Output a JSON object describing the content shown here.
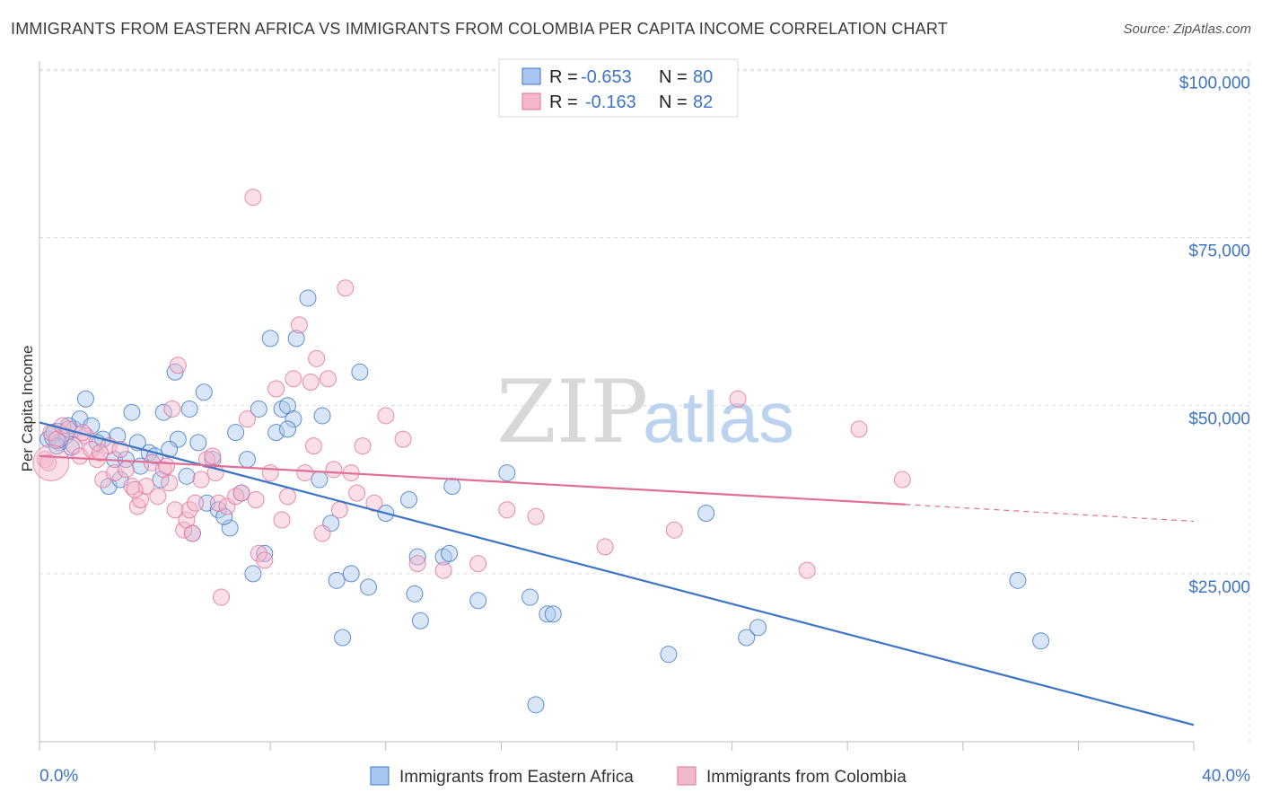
{
  "title": "IMMIGRANTS FROM EASTERN AFRICA VS IMMIGRANTS FROM COLOMBIA PER CAPITA INCOME CORRELATION CHART",
  "source": "Source: ZipAtlas.com",
  "watermark": {
    "zip": "ZIP",
    "atlas": "atlas"
  },
  "colors": {
    "blue": "#3d74c6",
    "blue_fill": "#a9c7ee",
    "pink": "#e07098",
    "pink_fill": "#f4b8cc",
    "grid": "#dcdcdc"
  },
  "legend": {
    "row1": {
      "r_label": "R =",
      "r_value": "-0.653",
      "n_label": "N =",
      "n_value": "80"
    },
    "row2": {
      "r_label": "R =",
      "r_value": "-0.163",
      "n_label": "N =",
      "n_value": "82"
    }
  },
  "chart_data": {
    "type": "scatter",
    "title": "IMMIGRANTS FROM EASTERN AFRICA VS IMMIGRANTS FROM COLOMBIA PER CAPITA INCOME CORRELATION CHART",
    "xlabel": "",
    "ylabel": "Per Capita Income",
    "xlim": [
      0,
      40
    ],
    "ylim": [
      0,
      105000
    ],
    "x_tick_labels": [
      "0.0%",
      "40.0%"
    ],
    "y_ticks": [
      25000,
      50000,
      75000,
      100000
    ],
    "y_tick_labels": [
      "$25,000",
      "$50,000",
      "$75,000",
      "$100,000"
    ],
    "grid": true,
    "legend_position": "bottom",
    "series": [
      {
        "name": "Immigrants from Eastern Africa",
        "color": "#3d74c6",
        "r": -0.653,
        "n": 80,
        "trend": {
          "x": [
            0,
            40
          ],
          "y": [
            47500,
            2500
          ]
        },
        "points": [
          [
            0.3,
            45000
          ],
          [
            0.5,
            46000
          ],
          [
            0.7,
            44500
          ],
          [
            0.9,
            45500
          ],
          [
            1.1,
            43800
          ],
          [
            1.2,
            46500
          ],
          [
            1.4,
            48000
          ],
          [
            1.6,
            51000
          ],
          [
            1.8,
            47000
          ],
          [
            2.2,
            45000
          ],
          [
            2.4,
            38000
          ],
          [
            2.6,
            42000
          ],
          [
            2.8,
            39000
          ],
          [
            3.2,
            49000
          ],
          [
            3.4,
            44500
          ],
          [
            3.5,
            41000
          ],
          [
            3.8,
            43000
          ],
          [
            4.0,
            42500
          ],
          [
            4.2,
            39000
          ],
          [
            4.3,
            49000
          ],
          [
            4.7,
            55000
          ],
          [
            4.8,
            45000
          ],
          [
            5.2,
            49500
          ],
          [
            5.3,
            31000
          ],
          [
            5.5,
            44500
          ],
          [
            5.7,
            52000
          ],
          [
            5.8,
            35500
          ],
          [
            6.0,
            42000
          ],
          [
            6.2,
            34500
          ],
          [
            6.6,
            31800
          ],
          [
            6.8,
            46000
          ],
          [
            7.0,
            37000
          ],
          [
            7.2,
            42000
          ],
          [
            7.4,
            25000
          ],
          [
            7.6,
            49500
          ],
          [
            7.8,
            28000
          ],
          [
            8.0,
            60000
          ],
          [
            8.2,
            46000
          ],
          [
            8.4,
            49500
          ],
          [
            8.6,
            50000
          ],
          [
            8.8,
            48000
          ],
          [
            8.9,
            60000
          ],
          [
            9.3,
            66000
          ],
          [
            9.7,
            39000
          ],
          [
            9.8,
            48500
          ],
          [
            10.1,
            32500
          ],
          [
            10.3,
            24000
          ],
          [
            10.5,
            15500
          ],
          [
            10.8,
            25000
          ],
          [
            11.1,
            55000
          ],
          [
            11.4,
            23000
          ],
          [
            12.8,
            36000
          ],
          [
            13.0,
            22000
          ],
          [
            13.1,
            27500
          ],
          [
            13.2,
            18000
          ],
          [
            14.0,
            27500
          ],
          [
            14.2,
            28000
          ],
          [
            14.3,
            38000
          ],
          [
            15.2,
            21000
          ],
          [
            16.2,
            40000
          ],
          [
            17.0,
            21500
          ],
          [
            17.2,
            5500
          ],
          [
            17.6,
            19000
          ],
          [
            17.8,
            19000
          ],
          [
            21.8,
            13000
          ],
          [
            23.1,
            34000
          ],
          [
            24.5,
            15500
          ],
          [
            24.9,
            17000
          ],
          [
            33.9,
            24000
          ],
          [
            34.7,
            15000
          ],
          [
            0.6,
            44000
          ],
          [
            1.0,
            47000
          ],
          [
            2.0,
            44500
          ],
          [
            3.0,
            42000
          ],
          [
            4.5,
            43500
          ],
          [
            6.4,
            33500
          ],
          [
            8.6,
            46500
          ],
          [
            12.0,
            34000
          ],
          [
            5.1,
            39500
          ],
          [
            2.7,
            45500
          ]
        ]
      },
      {
        "name": "Immigrants from Colombia",
        "color": "#e07098",
        "r": -0.163,
        "n": 82,
        "trend": {
          "x": [
            0,
            30
          ],
          "y": [
            42500,
            35300
          ]
        },
        "trend_dashed": {
          "x": [
            30,
            40
          ],
          "y": [
            35300,
            32800
          ]
        },
        "points": [
          [
            0.2,
            42000
          ],
          [
            0.4,
            46000
          ],
          [
            0.6,
            45000
          ],
          [
            0.8,
            47000
          ],
          [
            1.0,
            46500
          ],
          [
            1.2,
            44000
          ],
          [
            1.4,
            42500
          ],
          [
            1.6,
            45500
          ],
          [
            1.8,
            43500
          ],
          [
            2.0,
            42000
          ],
          [
            2.2,
            39000
          ],
          [
            2.4,
            44000
          ],
          [
            2.6,
            40000
          ],
          [
            2.8,
            43500
          ],
          [
            3.0,
            40500
          ],
          [
            3.2,
            38000
          ],
          [
            3.4,
            35000
          ],
          [
            3.5,
            36000
          ],
          [
            3.7,
            38000
          ],
          [
            3.9,
            41500
          ],
          [
            4.1,
            36500
          ],
          [
            4.3,
            40500
          ],
          [
            4.5,
            38500
          ],
          [
            4.6,
            49500
          ],
          [
            4.7,
            34500
          ],
          [
            4.8,
            56000
          ],
          [
            5.0,
            31500
          ],
          [
            5.1,
            33000
          ],
          [
            5.2,
            34500
          ],
          [
            5.3,
            31000
          ],
          [
            5.4,
            35500
          ],
          [
            5.6,
            39000
          ],
          [
            5.8,
            42000
          ],
          [
            6.0,
            42500
          ],
          [
            6.2,
            35500
          ],
          [
            6.3,
            21500
          ],
          [
            6.5,
            35000
          ],
          [
            6.8,
            36500
          ],
          [
            7.0,
            37000
          ],
          [
            7.2,
            48000
          ],
          [
            7.4,
            81000
          ],
          [
            7.6,
            28000
          ],
          [
            7.8,
            27000
          ],
          [
            8.0,
            40000
          ],
          [
            8.2,
            52500
          ],
          [
            8.4,
            33000
          ],
          [
            8.6,
            36500
          ],
          [
            8.8,
            54000
          ],
          [
            9.0,
            62000
          ],
          [
            9.2,
            40000
          ],
          [
            9.4,
            53500
          ],
          [
            9.6,
            57000
          ],
          [
            9.8,
            31000
          ],
          [
            10.0,
            54000
          ],
          [
            10.2,
            40500
          ],
          [
            10.4,
            34500
          ],
          [
            10.6,
            67500
          ],
          [
            10.8,
            40000
          ],
          [
            11.0,
            37000
          ],
          [
            11.2,
            44000
          ],
          [
            11.6,
            35500
          ],
          [
            12.0,
            48500
          ],
          [
            12.6,
            45000
          ],
          [
            13.1,
            26500
          ],
          [
            14.0,
            25500
          ],
          [
            15.2,
            26500
          ],
          [
            16.2,
            34500
          ],
          [
            17.2,
            33500
          ],
          [
            19.6,
            29000
          ],
          [
            22.0,
            31500
          ],
          [
            24.2,
            51000
          ],
          [
            26.6,
            25500
          ],
          [
            28.4,
            46500
          ],
          [
            29.9,
            39000
          ],
          [
            0.3,
            41500
          ],
          [
            1.5,
            46000
          ],
          [
            2.1,
            43000
          ],
          [
            3.3,
            37500
          ],
          [
            4.4,
            41000
          ],
          [
            6.1,
            40000
          ],
          [
            7.5,
            36000
          ],
          [
            9.5,
            44000
          ]
        ]
      }
    ]
  },
  "bottom_legend": {
    "blue_label": "Immigrants from Eastern Africa",
    "pink_label": "Immigrants from Colombia"
  }
}
